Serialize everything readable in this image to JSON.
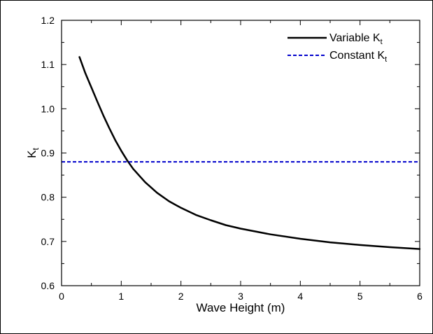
{
  "chart_data": {
    "type": "line",
    "xlabel": "Wave Height (m)",
    "ylabel": "K",
    "ylabel_sub": "t",
    "xlim": [
      0,
      6
    ],
    "ylim": [
      0.6,
      1.2
    ],
    "xticks": [
      0,
      1,
      2,
      3,
      4,
      5,
      6
    ],
    "xtick_labels": [
      "0",
      "1",
      "2",
      "3",
      "4",
      "5",
      "6"
    ],
    "yticks": [
      0.6,
      0.7,
      0.8,
      0.9,
      1.0,
      1.1,
      1.2
    ],
    "ytick_labels": [
      "0.6",
      "0.7",
      "0.8",
      "0.9",
      "1.0",
      "1.1",
      "1.2"
    ],
    "grid": false,
    "legend_position": "top-right",
    "series": [
      {
        "name": "Variable K",
        "name_sub": "t",
        "color": "#000000",
        "style": "solid",
        "x": [
          0.3,
          0.4,
          0.5,
          0.6,
          0.7,
          0.8,
          0.9,
          1.0,
          1.1,
          1.2,
          1.4,
          1.6,
          1.8,
          2.0,
          2.25,
          2.5,
          2.75,
          3.0,
          3.5,
          4.0,
          4.5,
          5.0,
          5.5,
          6.0
        ],
        "y": [
          1.117,
          1.08,
          1.048,
          1.016,
          0.985,
          0.956,
          0.929,
          0.905,
          0.883,
          0.864,
          0.834,
          0.81,
          0.791,
          0.776,
          0.76,
          0.748,
          0.737,
          0.729,
          0.716,
          0.706,
          0.698,
          0.692,
          0.687,
          0.683
        ]
      },
      {
        "name": "Constant K",
        "name_sub": "t",
        "color": "#0000cc",
        "style": "dashed",
        "x": [
          0,
          6
        ],
        "y": [
          0.88,
          0.88
        ]
      }
    ]
  }
}
